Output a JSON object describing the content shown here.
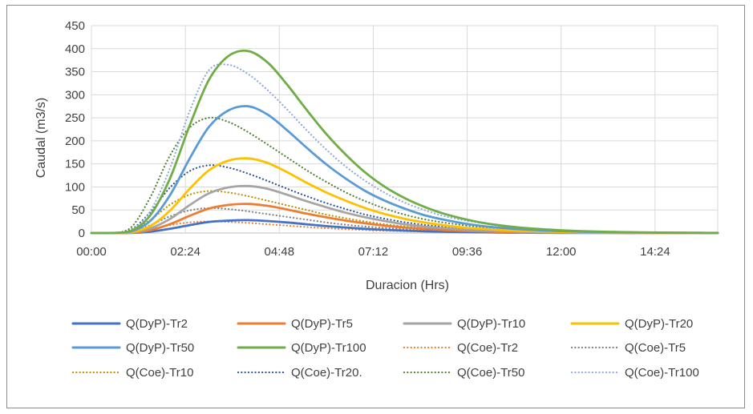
{
  "chart_data": {
    "type": "line",
    "title": "",
    "xlabel": "Duracion (Hrs)",
    "ylabel": "Caudal (m3/s)",
    "xlim": [
      0,
      16
    ],
    "ylim": [
      0,
      450
    ],
    "yticks": [
      0,
      50,
      100,
      150,
      200,
      250,
      300,
      350,
      400,
      450
    ],
    "xtick_labels": [
      "00:00",
      "02:24",
      "04:48",
      "07:12",
      "09:36",
      "12:00",
      "14:24"
    ],
    "xtick_hours": [
      0,
      2.4,
      4.8,
      7.2,
      9.6,
      12.0,
      14.4
    ],
    "grid": true,
    "legend_position": "bottom",
    "x": [
      0,
      0.5,
      1.0,
      1.5,
      2.0,
      2.5,
      3.0,
      3.5,
      4.0,
      4.5,
      5.0,
      5.5,
      6.0,
      6.5,
      7.0,
      7.5,
      8.0,
      8.5,
      9.0,
      9.5,
      10.0,
      10.5,
      11.0,
      11.5,
      12.0,
      12.5,
      13.0,
      13.5,
      14.0,
      14.5,
      15.0,
      15.5,
      16.0
    ],
    "series": [
      {
        "name": "Q(DyP)-Tr2",
        "color": "#4472c4",
        "style": "solid",
        "values": [
          0,
          0,
          0.3,
          3,
          9,
          17,
          24,
          27,
          28,
          26,
          23,
          19,
          15,
          12,
          9,
          7,
          5.2,
          3.9,
          2.9,
          2.1,
          1.5,
          1.1,
          0.8,
          0.6,
          0.4,
          0.3,
          0.2,
          0.1,
          0.1,
          0.1,
          0,
          0,
          0
        ]
      },
      {
        "name": "Q(DyP)-Tr5",
        "color": "#ed7d31",
        "style": "solid",
        "values": [
          0,
          0,
          0.6,
          6,
          19,
          37,
          53,
          61,
          63,
          59,
          51,
          42,
          34,
          27,
          21,
          16,
          12,
          8.8,
          6.5,
          4.7,
          3.4,
          2.5,
          1.8,
          1.3,
          0.9,
          0.7,
          0.5,
          0.3,
          0.2,
          0.2,
          0.1,
          0.1,
          0
        ]
      },
      {
        "name": "Q(DyP)-Tr10",
        "color": "#a5a5a5",
        "style": "solid",
        "values": [
          0,
          0,
          1,
          10,
          30,
          60,
          86,
          99,
          102,
          96,
          83,
          69,
          56,
          44,
          34,
          26,
          19,
          14,
          10.5,
          7.7,
          5.6,
          4.1,
          3,
          2.1,
          1.5,
          1.1,
          0.8,
          0.6,
          0.4,
          0.3,
          0.2,
          0.1,
          0.1
        ]
      },
      {
        "name": "Q(DyP)-Tr20",
        "color": "#ffc000",
        "style": "solid",
        "values": [
          0,
          0,
          1.5,
          15,
          48,
          95,
          136,
          157,
          162,
          152,
          132,
          109,
          88,
          70,
          54,
          41,
          31,
          23,
          17,
          12,
          9,
          6.5,
          4.7,
          3.4,
          2.4,
          1.7,
          1.2,
          0.9,
          0.6,
          0.4,
          0.3,
          0.2,
          0.1
        ]
      },
      {
        "name": "Q(DyP)-Tr50",
        "color": "#5b9bd5",
        "style": "solid",
        "values": [
          0,
          0,
          3,
          26,
          81,
          160,
          230,
          266,
          275,
          257,
          223,
          185,
          149,
          118,
          91,
          70,
          53,
          39,
          29,
          21,
          15,
          11,
          8,
          5.8,
          4.1,
          2.9,
          2.1,
          1.5,
          1,
          0.7,
          0.5,
          0.3,
          0.2
        ]
      },
      {
        "name": "Q(DyP)-Tr100",
        "color": "#70ad47",
        "style": "solid",
        "values": [
          0,
          0,
          4,
          38,
          117,
          231,
          332,
          384,
          395,
          370,
          322,
          267,
          215,
          170,
          131,
          100,
          76,
          57,
          42,
          31,
          22,
          16,
          11.5,
          8.3,
          5.9,
          4.2,
          3,
          2.1,
          1.5,
          1,
          0.7,
          0.5,
          0.3
        ]
      },
      {
        "name": "Q(Coe)-Tr2",
        "color": "#ed7d31",
        "style": "dotted",
        "values": [
          0,
          0,
          1.2,
          8,
          17,
          23,
          25,
          24,
          22,
          19,
          16,
          13,
          10.5,
          8.3,
          6.5,
          5,
          3.8,
          2.9,
          2.2,
          1.6,
          1.2,
          0.9,
          0.6,
          0.5,
          0.3,
          0.2,
          0.2,
          0.1,
          0.1,
          0.1,
          0,
          0,
          0
        ]
      },
      {
        "name": "Q(Coe)-Tr5",
        "color": "#7f7f7f",
        "style": "dotted",
        "values": [
          0,
          0,
          2.5,
          17,
          36,
          49,
          54,
          52,
          47,
          41,
          35,
          29,
          23,
          18,
          14,
          11,
          8.3,
          6.3,
          4.8,
          3.6,
          2.7,
          2,
          1.5,
          1.1,
          0.8,
          0.6,
          0.4,
          0.3,
          0.2,
          0.2,
          0.1,
          0.1,
          0
        ]
      },
      {
        "name": "Q(Coe)-Tr10",
        "color": "#bf9000",
        "style": "dotted",
        "values": [
          0,
          0,
          4,
          28,
          61,
          83,
          91,
          88,
          80,
          70,
          60,
          50,
          40,
          32,
          25,
          19,
          14.5,
          11,
          8.3,
          6.2,
          4.6,
          3.4,
          2.5,
          1.9,
          1.4,
          1,
          0.7,
          0.5,
          0.4,
          0.3,
          0.2,
          0.1,
          0.1
        ]
      },
      {
        "name": "Q(Coe)-Tr20.",
        "color": "#2f5597",
        "style": "dotted",
        "values": [
          0,
          0,
          6.5,
          45,
          98,
          134,
          147,
          142,
          129,
          113,
          96,
          80,
          65,
          52,
          40,
          31,
          23.5,
          17.8,
          13.4,
          10,
          7.5,
          5.5,
          4.1,
          3,
          2.2,
          1.6,
          1.2,
          0.9,
          0.6,
          0.5,
          0.3,
          0.2,
          0.2
        ]
      },
      {
        "name": "Q(Coe)-Tr50",
        "color": "#548235",
        "style": "dotted",
        "values": [
          0,
          0,
          11,
          77,
          167,
          228,
          250,
          241,
          219,
          192,
          164,
          136,
          111,
          88,
          69,
          53,
          40,
          30,
          22.8,
          17,
          12.7,
          9.4,
          6.9,
          5.1,
          3.7,
          2.7,
          2,
          1.4,
          1,
          0.8,
          0.6,
          0.4,
          0.3
        ]
      },
      {
        "name": "Q(Coe)-Tr100",
        "color": "#8faadc",
        "style": "dotted",
        "values": [
          0,
          0,
          5,
          47,
          139,
          262,
          353,
          365,
          345,
          310,
          268,
          223,
          181,
          144,
          113,
          87,
          66,
          50,
          37,
          28,
          21,
          15,
          11,
          8,
          5.8,
          4.2,
          3,
          2.2,
          1.6,
          1.1,
          0.8,
          0.6,
          0.4
        ]
      }
    ]
  }
}
